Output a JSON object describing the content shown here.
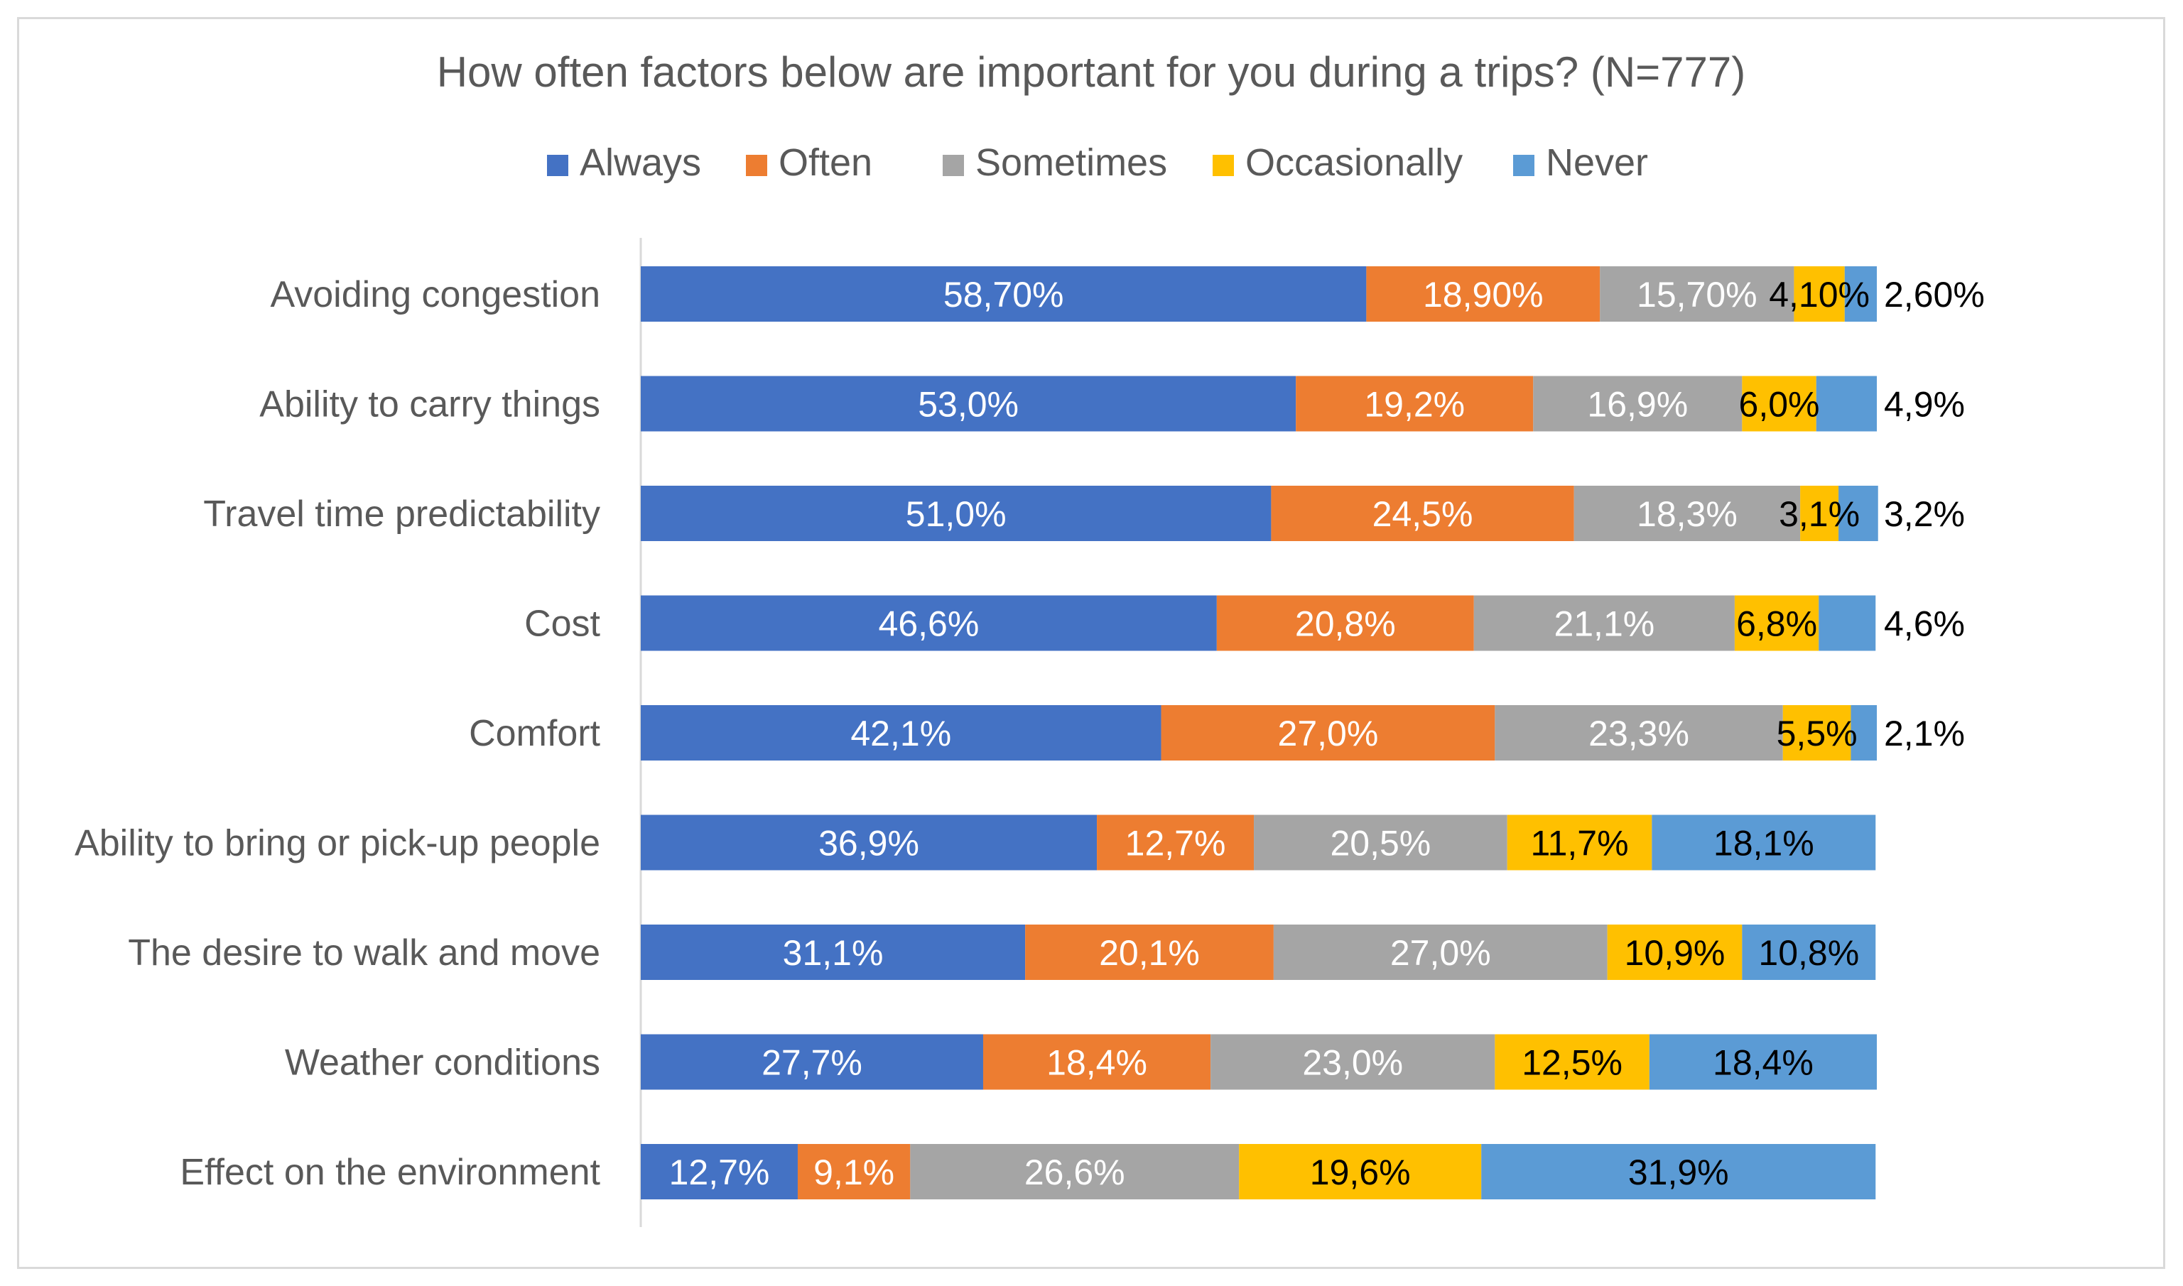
{
  "chart_data": {
    "type": "bar",
    "orientation": "horizontal",
    "stacked": "percent",
    "title": "How often factors below are important for you during a trips? (N=777)",
    "xlabel": "",
    "ylabel": "",
    "xlim": [
      0,
      100
    ],
    "legend_position": "top-center",
    "grid": false,
    "colors": {
      "Always": "#4472c4",
      "Often": "#ed7d31",
      "Sometimes": "#a5a5a5",
      "Occasionally": "#ffc000",
      "Never": "#5b9bd5"
    },
    "label_colors": {
      "Always": "#ffffff",
      "Often": "#ffffff",
      "Sometimes": "#ffffff",
      "Occasionally": "#000000",
      "Never": "#000000"
    },
    "categories": [
      "Avoiding congestion",
      "Ability to carry things",
      "Travel time predictability",
      "Cost",
      "Comfort",
      "Ability to bring or pick-up people",
      "The desire to walk and move",
      "Weather conditions",
      "Effect on the environment"
    ],
    "series": [
      {
        "name": "Always",
        "values": [
          58.7,
          53.0,
          51.0,
          46.6,
          42.1,
          36.9,
          31.1,
          27.7,
          12.7
        ],
        "labels": [
          "58,70%",
          "53,0%",
          "51,0%",
          "46,6%",
          "42,1%",
          "36,9%",
          "31,1%",
          "27,7%",
          "12,7%"
        ]
      },
      {
        "name": "Often",
        "values": [
          18.9,
          19.2,
          24.5,
          20.8,
          27.0,
          12.7,
          20.1,
          18.4,
          9.1
        ],
        "labels": [
          "18,90%",
          "19,2%",
          "24,5%",
          "20,8%",
          "27,0%",
          "12,7%",
          "20,1%",
          "18,4%",
          "9,1%"
        ]
      },
      {
        "name": "Sometimes",
        "values": [
          15.7,
          16.9,
          18.3,
          21.1,
          23.3,
          20.5,
          27.0,
          23.0,
          26.6
        ],
        "labels": [
          "15,70%",
          "16,9%",
          "18,3%",
          "21,1%",
          "23,3%",
          "20,5%",
          "27,0%",
          "23,0%",
          "26,6%"
        ]
      },
      {
        "name": "Occasionally",
        "values": [
          4.1,
          6.0,
          3.1,
          6.8,
          5.5,
          11.7,
          10.9,
          12.5,
          19.6
        ],
        "labels": [
          "4,10%",
          "6,0%",
          "3,1%",
          "6,8%",
          "5,5%",
          "11,7%",
          "10,9%",
          "12,5%",
          "19,6%"
        ]
      },
      {
        "name": "Never",
        "values": [
          2.6,
          4.9,
          3.2,
          4.6,
          2.1,
          18.1,
          10.8,
          18.4,
          31.9
        ],
        "labels": [
          "2,60%",
          "4,9%",
          "3,2%",
          "4,6%",
          "2,1%",
          "18,1%",
          "10,8%",
          "18,4%",
          "31,9%"
        ]
      }
    ]
  }
}
